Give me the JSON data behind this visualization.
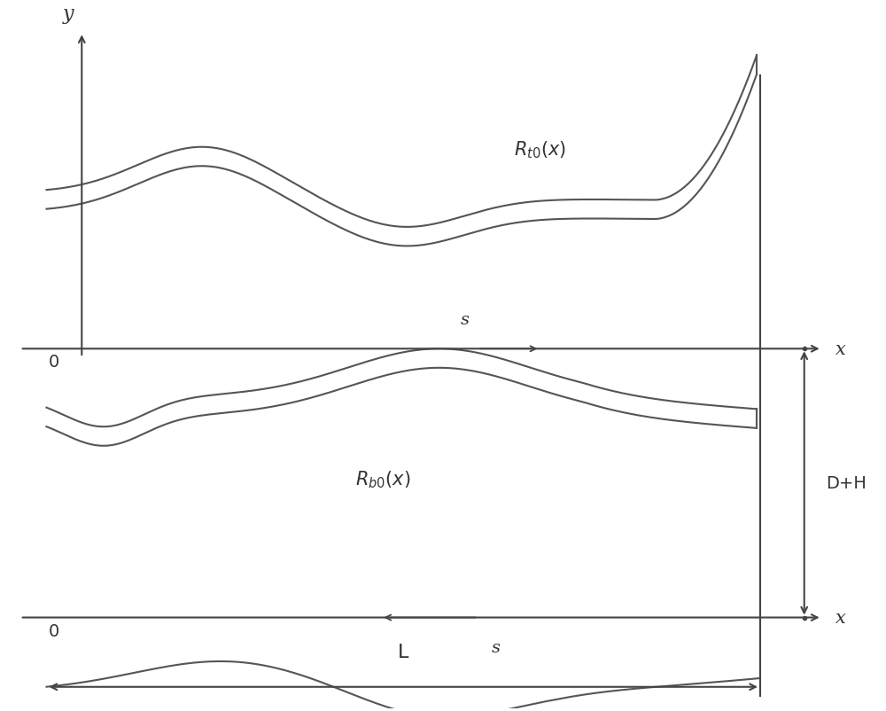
{
  "bg_color": "#ffffff",
  "line_color": "#555555",
  "axis_color": "#444444",
  "text_color": "#333333",
  "figsize": [
    10.0,
    8.03
  ],
  "dpi": 100,
  "label_y": "y",
  "label_x": "x",
  "label_s_top": "s",
  "label_s_bottom": "s",
  "label_L": "L",
  "label_DH": "D+H",
  "label_0_top": "0",
  "label_0_bottom": "0",
  "label_Rt0": "$R_{t0}(x)$",
  "label_Rb0": "$R_{b0}(x)$"
}
